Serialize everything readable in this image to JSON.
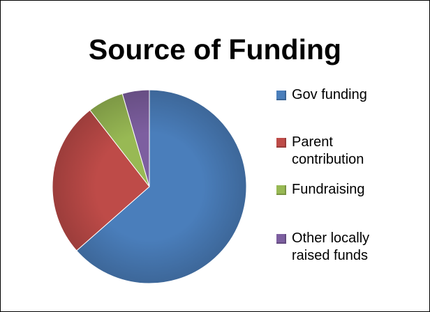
{
  "chart_data": {
    "type": "pie",
    "title": "Source of Funding",
    "legend_position": "right",
    "start_angle_deg": 0,
    "direction": "clockwise",
    "slices": [
      {
        "name": "Gov funding",
        "value": 63.5,
        "color": "#4a7ebb"
      },
      {
        "name": "Parent contribution",
        "value": 26.0,
        "color": "#be4b48"
      },
      {
        "name": "Fundraising",
        "value": 6.0,
        "color": "#98b954"
      },
      {
        "name": "Other locally raised funds",
        "value": 4.5,
        "color": "#7d5fa0"
      }
    ]
  },
  "legend": {
    "items": [
      {
        "label": "Gov funding"
      },
      {
        "label": "Parent\ncontribution"
      },
      {
        "label": "Fundraising"
      },
      {
        "label": "Other locally\nraised funds"
      }
    ]
  }
}
